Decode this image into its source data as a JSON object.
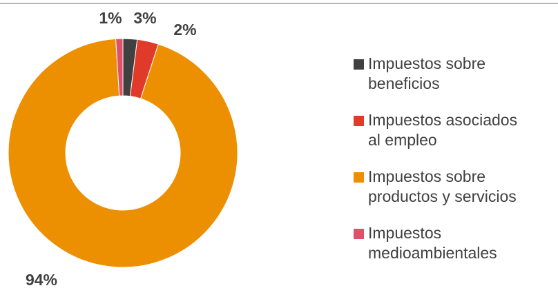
{
  "chart_data": {
    "type": "donut",
    "categories": [
      "Impuestos sobre beneficios",
      "Impuestos asociados al empleo",
      "Impuestos sobre productos y servicios",
      "Impuestos medioambientales"
    ],
    "values": [
      2,
      3,
      94,
      1
    ],
    "value_labels": [
      "2%",
      "3%",
      "94%",
      "1%"
    ],
    "colors": [
      "#404040",
      "#e03a2a",
      "#ec8f00",
      "#e0506a"
    ],
    "legend": "right"
  }
}
